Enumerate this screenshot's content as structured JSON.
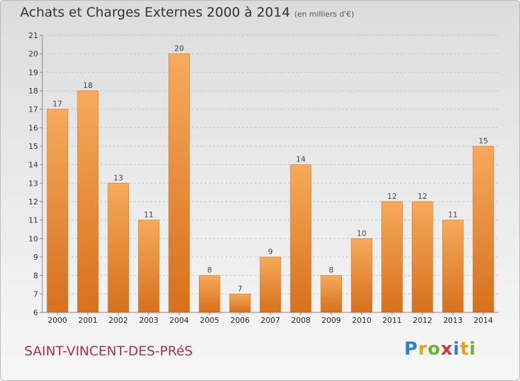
{
  "header": {
    "title": "Achats et Charges Externes 2000 à 2014",
    "unit": "(en milliers d'€)"
  },
  "footer": {
    "commune": "SAINT-VINCENT-DES-PRéS",
    "logo_text": "Proxiti",
    "logo_letters": [
      {
        "ch": "P",
        "color": "#2f7fd0"
      },
      {
        "ch": "r",
        "color": "#e8a21a"
      },
      {
        "ch": "o",
        "color": "#6cb42d"
      },
      {
        "ch": "x",
        "color": "#d23a3a"
      },
      {
        "ch": "i",
        "color": "#2f7fd0"
      },
      {
        "ch": "t",
        "color": "#e8a21a"
      },
      {
        "ch": "i",
        "color": "#6cb42d"
      }
    ]
  },
  "colors": {
    "bar_top": "#f6aa5a",
    "bar_bottom": "#d7701c",
    "grid": "#c9c9c9",
    "title": "#333333",
    "commune": "#b0304a"
  },
  "chart_data": {
    "type": "bar",
    "title": "Achats et Charges Externes 2000 à 2014",
    "subtitle": "(en milliers d'€)",
    "xlabel": "",
    "ylabel": "",
    "categories": [
      "2000",
      "2001",
      "2002",
      "2003",
      "2004",
      "2005",
      "2006",
      "2007",
      "2008",
      "2009",
      "2010",
      "2011",
      "2012",
      "2013",
      "2014"
    ],
    "values": [
      17,
      18,
      13,
      11,
      20,
      8,
      7,
      9,
      14,
      8,
      10,
      12,
      12,
      11,
      15
    ],
    "ylim": [
      6,
      21
    ],
    "yticks": [
      6,
      7,
      8,
      9,
      10,
      11,
      12,
      13,
      14,
      15,
      16,
      17,
      18,
      19,
      20,
      21
    ],
    "grid": true,
    "data_labels": true
  }
}
